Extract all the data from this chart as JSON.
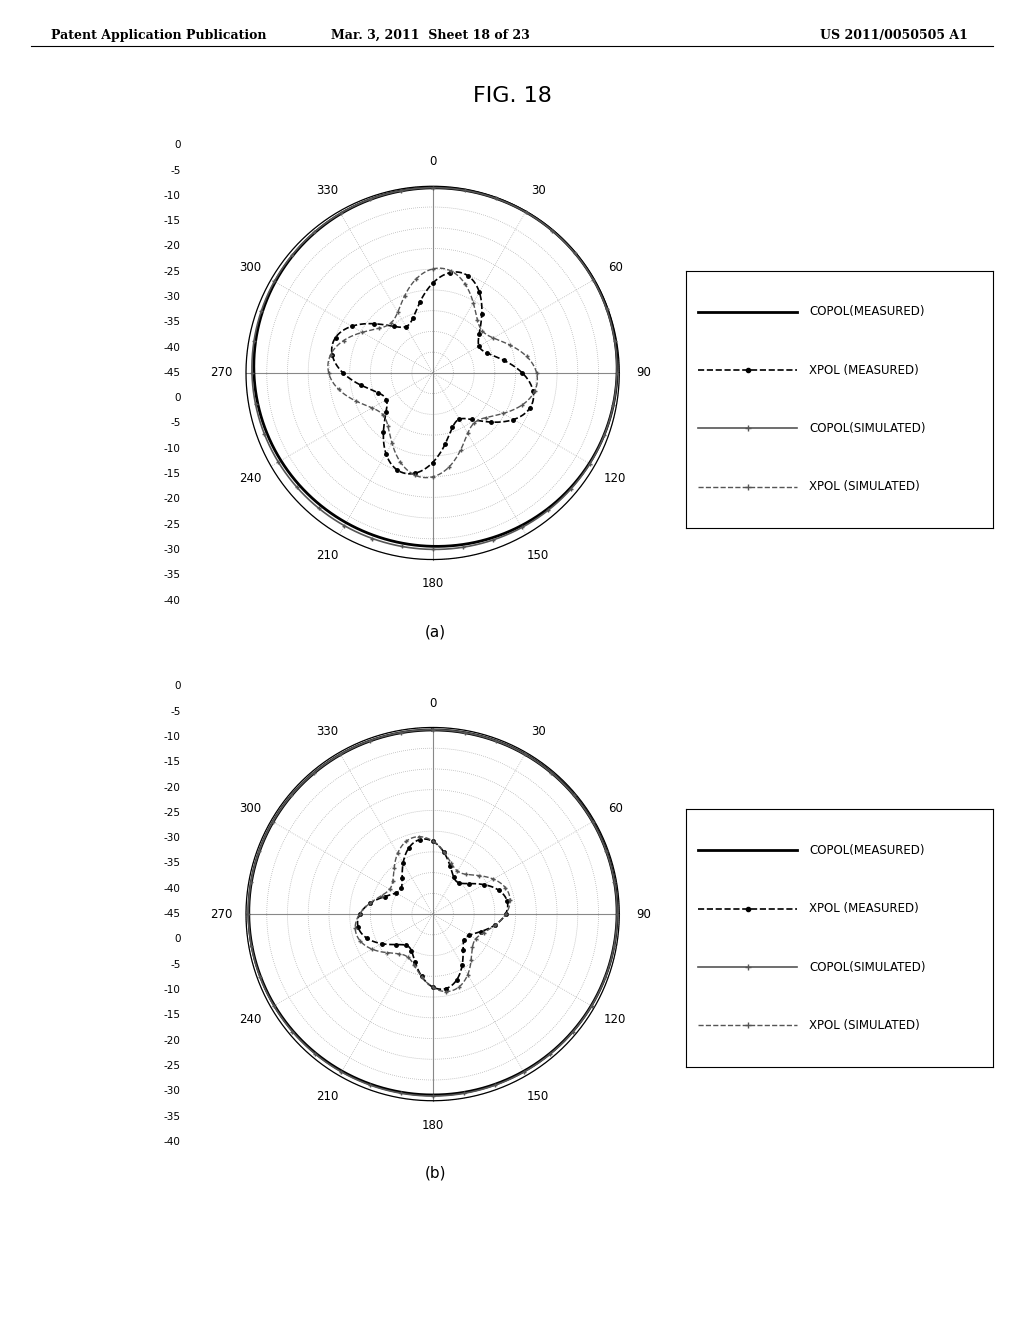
{
  "title": "FIG. 18",
  "header_left": "Patent Application Publication",
  "header_mid": "Mar. 3, 2011  Sheet 18 of 23",
  "header_right": "US 2011/0050505 A1",
  "subtitle_a": "(a)",
  "subtitle_b": "(b)",
  "r_ticks_db": [
    0,
    -5,
    -10,
    -15,
    -20,
    -25,
    -30,
    -35,
    -40,
    -45
  ],
  "r_min": -45,
  "r_max": 0,
  "legend_items": [
    {
      "label": "COPOL(MEASURED)",
      "ls": "-",
      "color": "#000000",
      "lw": 2.0,
      "marker": null,
      "ms": 0
    },
    {
      "label": "XPOL (MEASURED)",
      "ls": "--",
      "color": "#000000",
      "lw": 1.2,
      "marker": "o",
      "ms": 3
    },
    {
      "label": "COPOL(SIMULATED)",
      "ls": "-",
      "color": "#555555",
      "lw": 1.2,
      "marker": "+",
      "ms": 4
    },
    {
      "label": "XPOL (SIMULATED)",
      "ls": "--",
      "color": "#555555",
      "lw": 1.0,
      "marker": "+",
      "ms": 4
    }
  ],
  "background_color": "#ffffff",
  "figsize": [
    10.24,
    13.2
  ],
  "dpi": 100
}
